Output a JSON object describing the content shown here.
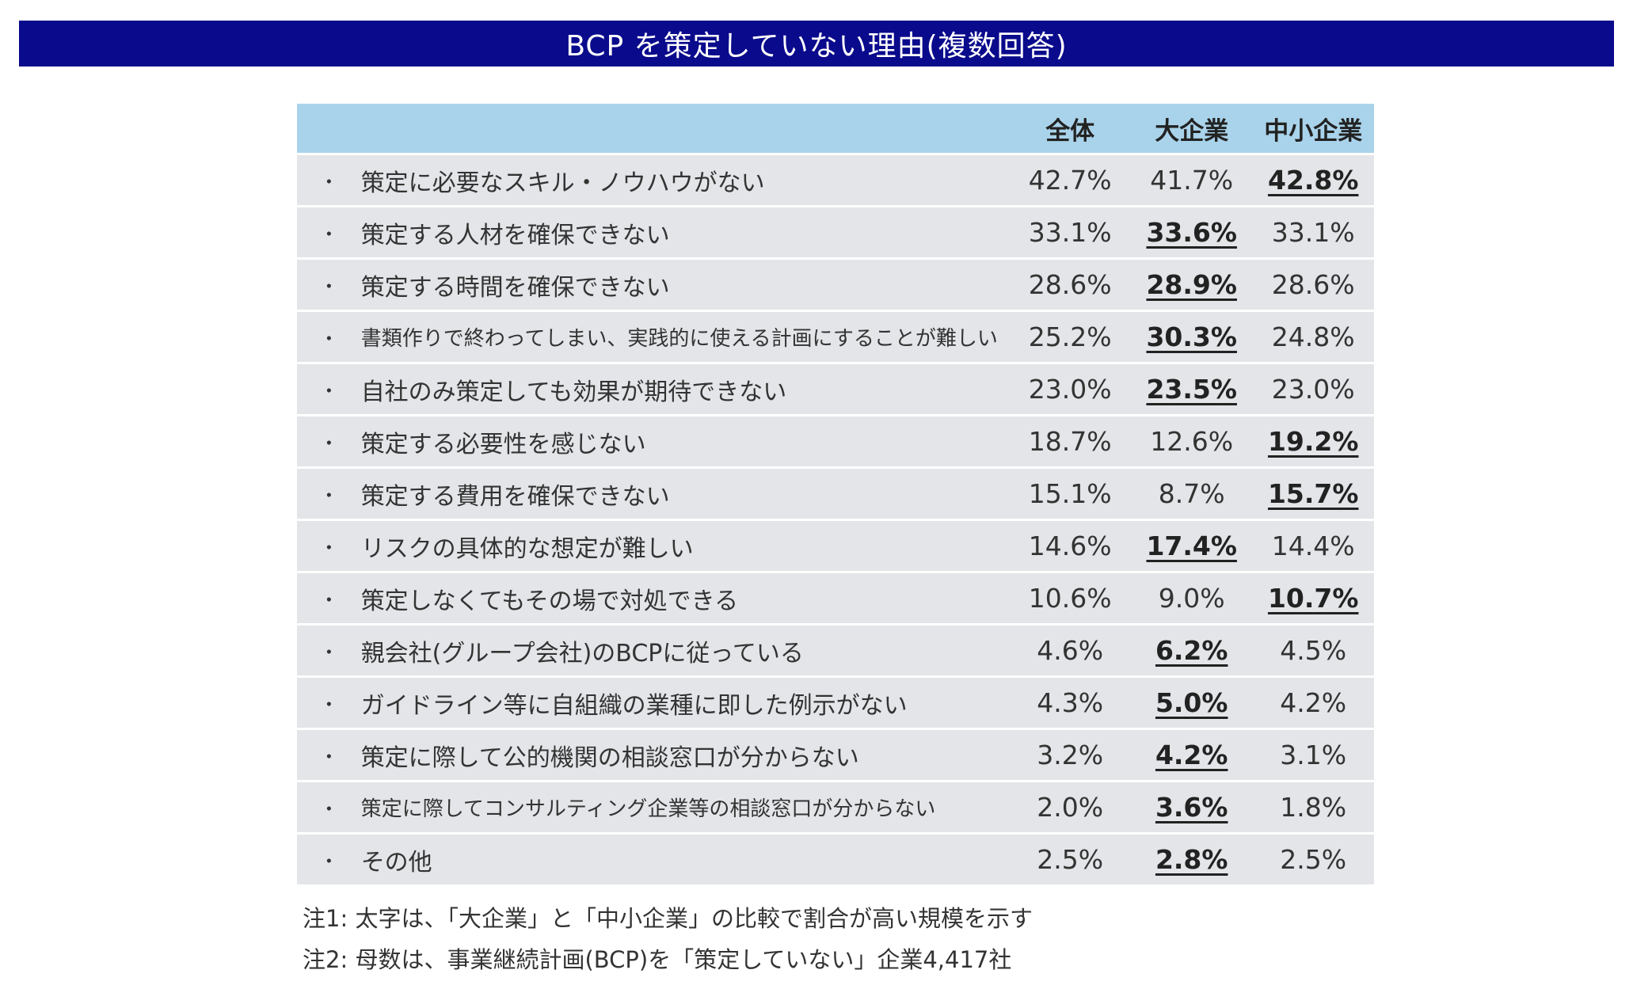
{
  "title": "BCP を策定していない理由(複数回答)",
  "chart_data": {
    "type": "table",
    "columns": [
      "全体",
      "大企業",
      "中小企業"
    ],
    "rows": [
      {
        "label": "策定に必要なスキル・ノウハウがない",
        "values": [
          "42.7%",
          "41.7%",
          "42.8%"
        ],
        "highlight": 2
      },
      {
        "label": "策定する人材を確保できない",
        "values": [
          "33.1%",
          "33.6%",
          "33.1%"
        ],
        "highlight": 1
      },
      {
        "label": "策定する時間を確保できない",
        "values": [
          "28.6%",
          "28.9%",
          "28.6%"
        ],
        "highlight": 1
      },
      {
        "label": "書類作りで終わってしまい、実践的に使える計画にすることが難しい",
        "values": [
          "25.2%",
          "30.3%",
          "24.8%"
        ],
        "highlight": 1,
        "small": true
      },
      {
        "label": "自社のみ策定しても効果が期待できない",
        "values": [
          "23.0%",
          "23.5%",
          "23.0%"
        ],
        "highlight": 1
      },
      {
        "label": "策定する必要性を感じない",
        "values": [
          "18.7%",
          "12.6%",
          "19.2%"
        ],
        "highlight": 2
      },
      {
        "label": "策定する費用を確保できない",
        "values": [
          "15.1%",
          "8.7%",
          "15.7%"
        ],
        "highlight": 2
      },
      {
        "label": "リスクの具体的な想定が難しい",
        "values": [
          "14.6%",
          "17.4%",
          "14.4%"
        ],
        "highlight": 1
      },
      {
        "label": "策定しなくてもその場で対処できる",
        "values": [
          "10.6%",
          "9.0%",
          "10.7%"
        ],
        "highlight": 2
      },
      {
        "label": "親会社(グループ会社)のBCPに従っている",
        "values": [
          "4.6%",
          "6.2%",
          "4.5%"
        ],
        "highlight": 1
      },
      {
        "label": "ガイドライン等に自組織の業種に即した例示がない",
        "values": [
          "4.3%",
          "5.0%",
          "4.2%"
        ],
        "highlight": 1
      },
      {
        "label": "策定に際して公的機関の相談窓口が分からない",
        "values": [
          "3.2%",
          "4.2%",
          "3.1%"
        ],
        "highlight": 1
      },
      {
        "label": "策定に際してコンサルティング企業等の相談窓口が分からない",
        "values": [
          "2.0%",
          "3.6%",
          "1.8%"
        ],
        "highlight": 1,
        "small": true
      },
      {
        "label": "その他",
        "values": [
          "2.5%",
          "2.8%",
          "2.5%"
        ],
        "highlight": 1
      }
    ],
    "bullet": "・"
  },
  "notes": [
    "注1: 太字は、「大企業」と「中小企業」の比較で割合が高い規模を示す",
    "注2: 母数は、事業継続計画(BCP)を「策定していない」企業4,417社"
  ],
  "colors": {
    "title_bg": "#0a0a8c",
    "header_bg": "#a9d3ea",
    "row_bg": "#e3e5e8"
  }
}
